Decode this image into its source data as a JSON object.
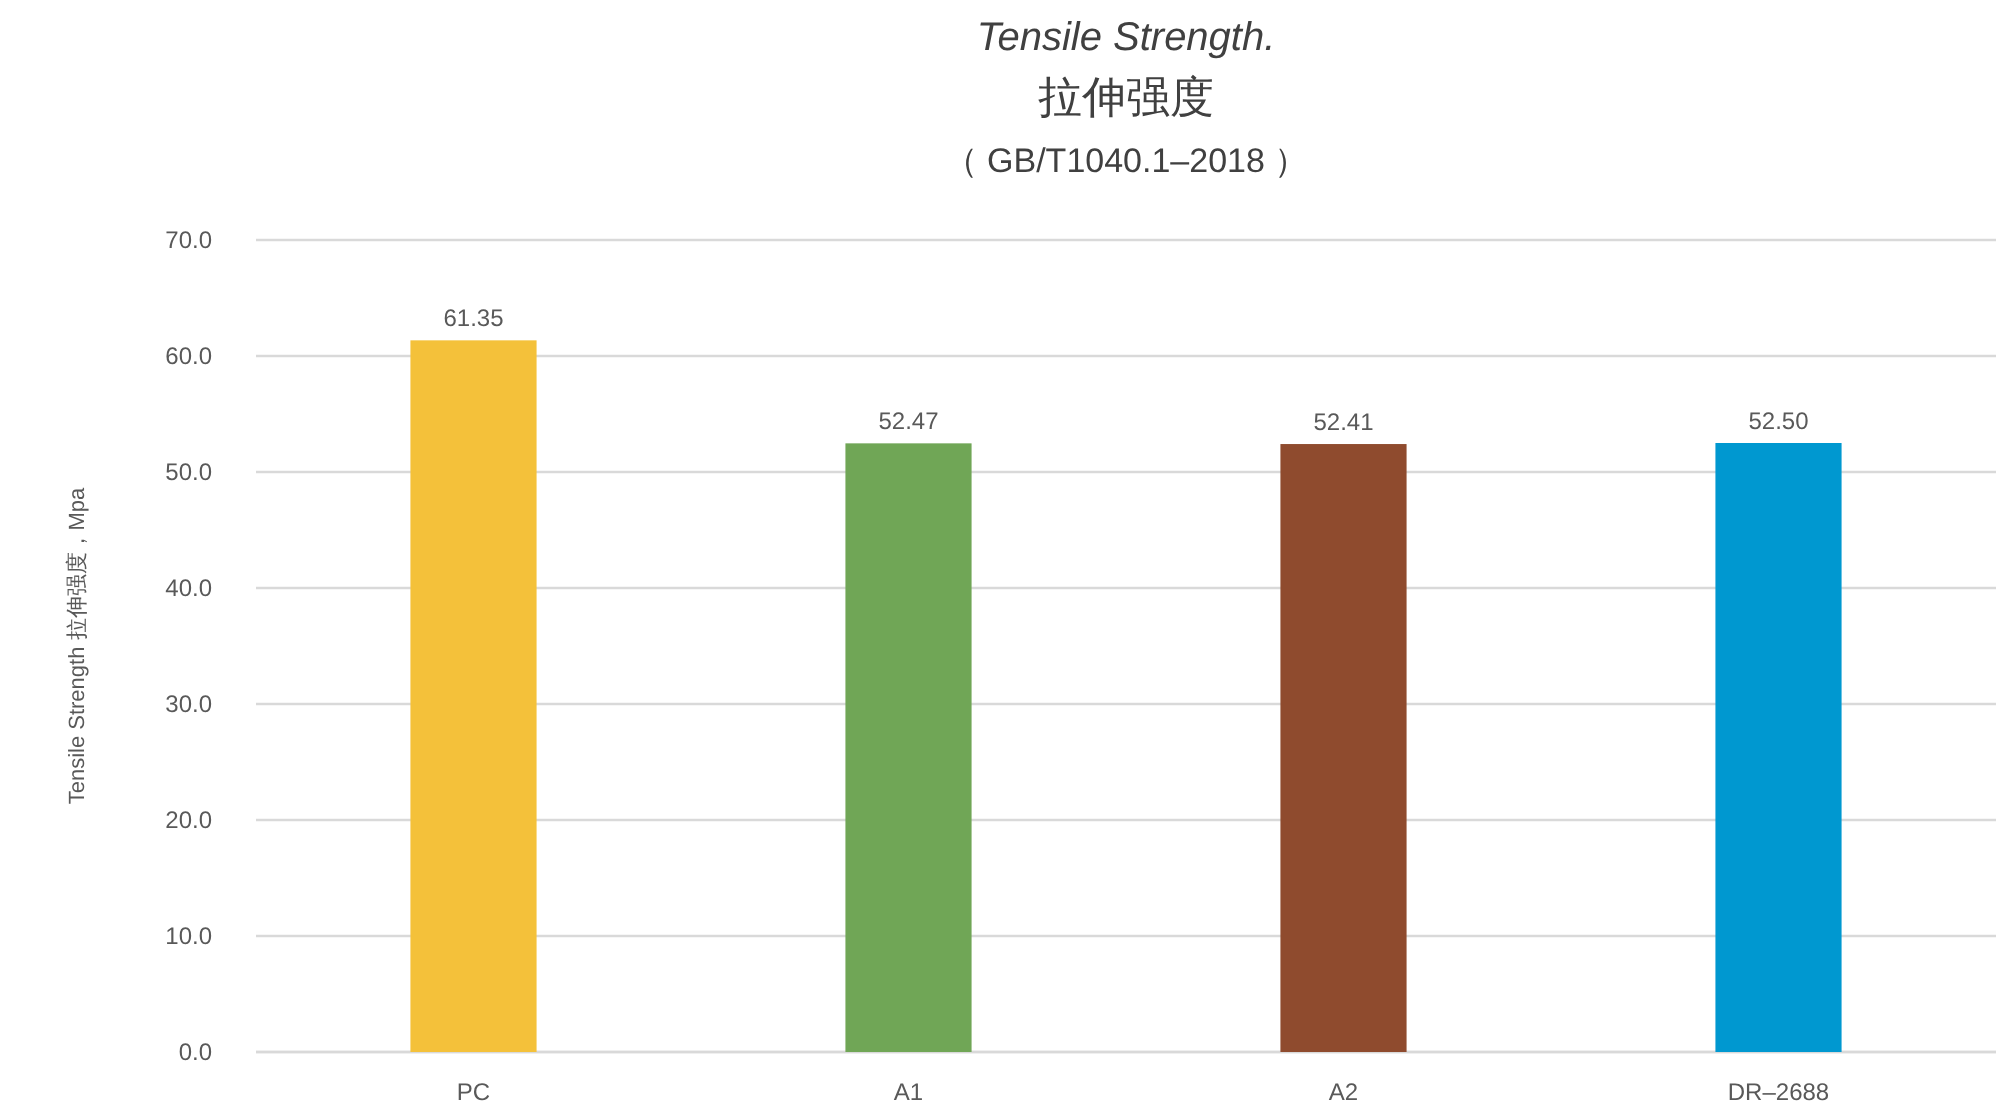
{
  "chart_data": {
    "type": "bar",
    "title": "Tensile Strength.",
    "subtitle": "拉伸强度",
    "annotations": [
      "（ GB/T1040.1–2018 ）"
    ],
    "ylabel": "Tensile Strength 拉伸强度，Mpa",
    "categories": [
      "PC",
      "A1",
      "A2",
      "DR–2688"
    ],
    "values": [
      61.35,
      52.47,
      52.41,
      52.5
    ],
    "value_labels": [
      "61.35",
      "52.47",
      "52.41",
      "52.50"
    ],
    "colors": [
      "#f4c13a",
      "#70a656",
      "#8f4b2e",
      "#0098d0"
    ],
    "ylim": [
      0,
      70
    ],
    "yticks": [
      {
        "value": 0,
        "label": "0.0"
      },
      {
        "value": 10,
        "label": "10.0"
      },
      {
        "value": 20,
        "label": "20.0"
      },
      {
        "value": 30,
        "label": "30.0"
      },
      {
        "value": 40,
        "label": "40.0"
      },
      {
        "value": 50,
        "label": "50.0"
      },
      {
        "value": 60,
        "label": "60.0"
      },
      {
        "value": 70,
        "label": "70.0"
      }
    ],
    "grid": "y"
  }
}
